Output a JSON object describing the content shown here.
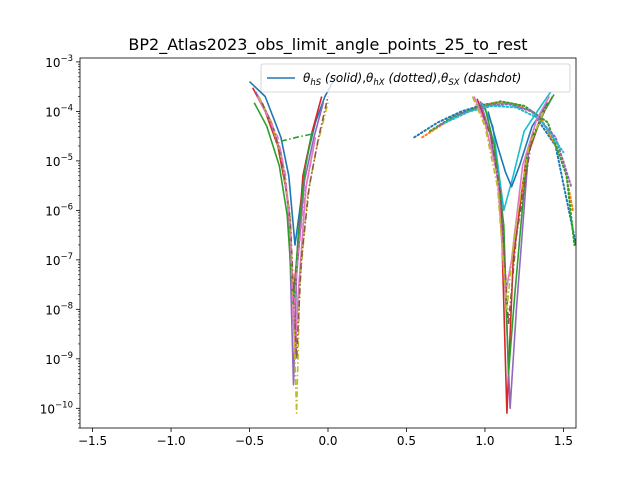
{
  "chart_data": {
    "type": "line",
    "title": "BP2_Atlas2023_obs_limit_angle_points_25_to_rest",
    "xlabel": "",
    "ylabel": "",
    "xlim": [
      -1.58,
      1.58
    ],
    "ylim": [
      4e-11,
      0.0012
    ],
    "yscale": "log",
    "grid": false,
    "x_ticks": [
      -1.5,
      -1.0,
      -0.5,
      0.0,
      0.5,
      1.0,
      1.5
    ],
    "x_tick_labels": [
      "−1.5",
      "−1.0",
      "−0.5",
      "0.0",
      "0.5",
      "1.0",
      "1.5"
    ],
    "y_ticks": [
      1e-10,
      1e-09,
      1e-08,
      1e-07,
      1e-06,
      1e-05,
      0.0001,
      0.001
    ],
    "y_tick_labels": [
      {
        "base": "10",
        "exp": "−10"
      },
      {
        "base": "10",
        "exp": "−9"
      },
      {
        "base": "10",
        "exp": "−8"
      },
      {
        "base": "10",
        "exp": "−7"
      },
      {
        "base": "10",
        "exp": "−6"
      },
      {
        "base": "10",
        "exp": "−5"
      },
      {
        "base": "10",
        "exp": "−4"
      },
      {
        "base": "10",
        "exp": "−3"
      }
    ],
    "legend": {
      "placement": "top-right",
      "entries": [
        {
          "text": "θhS (solid),θhX (dotted),θSX (dashdot)",
          "color": "#1f77b4"
        }
      ]
    },
    "palette": [
      "#1f77b4",
      "#ff7f0e",
      "#2ca02c",
      "#d62728",
      "#9467bd",
      "#8c564b",
      "#e377c2",
      "#7f7f7f",
      "#bcbd22",
      "#17becf"
    ],
    "series": [
      {
        "style": "solid",
        "color": "#1f77b4",
        "x": [
          -0.5,
          -0.4,
          -0.3,
          -0.25,
          -0.21,
          -0.18,
          -0.14,
          -0.08,
          -0.02,
          0.05
        ],
        "y": [
          0.0004,
          0.0002,
          3e-05,
          5e-06,
          2e-07,
          1e-06,
          1e-05,
          6e-05,
          0.0002,
          0.0005
        ]
      },
      {
        "style": "solid",
        "color": "#d62728",
        "x": [
          -0.48,
          -0.4,
          -0.32,
          -0.26,
          -0.22,
          -0.2,
          -0.16,
          -0.1,
          -0.04
        ],
        "y": [
          0.0003,
          0.0001,
          2e-05,
          2e-06,
          2e-08,
          1e-07,
          5e-06,
          4e-05,
          0.0002
        ]
      },
      {
        "style": "solid",
        "color": "#9467bd",
        "x": [
          -0.46,
          -0.38,
          -0.3,
          -0.25,
          -0.22,
          -0.2,
          -0.15,
          -0.09,
          -0.03
        ],
        "y": [
          0.00025,
          8e-05,
          1.5e-05,
          1e-06,
          3e-10,
          5e-08,
          4e-06,
          3e-05,
          0.00015
        ]
      },
      {
        "style": "solid",
        "color": "#e377c2",
        "x": [
          -0.45,
          -0.36,
          -0.29,
          -0.24,
          -0.21,
          -0.19,
          -0.14,
          -0.08
        ],
        "y": [
          0.0002,
          6e-05,
          1e-05,
          5e-07,
          1e-09,
          2e-08,
          3e-06,
          3e-05
        ]
      },
      {
        "style": "solid",
        "color": "#2ca02c",
        "x": [
          -0.47,
          -0.39,
          -0.31,
          -0.26,
          -0.22,
          -0.19,
          -0.15,
          -0.1
        ],
        "y": [
          0.00015,
          5e-05,
          8e-06,
          8e-07,
          1e-08,
          3e-07,
          6e-06,
          4e-05
        ]
      },
      {
        "style": "dashdot",
        "color": "#bcbd22",
        "x": [
          -0.44,
          -0.36,
          -0.29,
          -0.24,
          -0.2,
          -0.18,
          -0.13,
          -0.07,
          0.0
        ],
        "y": [
          0.0002,
          6e-05,
          9e-06,
          8e-07,
          8e-11,
          3e-08,
          2e-06,
          2e-05,
          0.00015
        ]
      },
      {
        "style": "dashdot",
        "color": "#8c564b",
        "x": [
          -0.42,
          -0.34,
          -0.28,
          -0.24,
          -0.2,
          -0.17,
          -0.12,
          -0.06,
          0.0
        ],
        "y": [
          0.00015,
          4e-05,
          6e-06,
          6e-07,
          1e-09,
          1e-07,
          3e-06,
          3e-05,
          0.0002
        ]
      },
      {
        "style": "dashdot",
        "color": "#2ca02c",
        "x": [
          -0.3,
          -0.2,
          -0.1
        ],
        "y": [
          2.5e-05,
          3e-05,
          3.5e-05
        ]
      },
      {
        "style": "dashdot",
        "color": "#e377c2",
        "x": [
          -0.4,
          -0.32,
          -0.27,
          -0.24,
          -0.22,
          -0.2,
          -0.15,
          -0.09
        ],
        "y": [
          0.0001,
          3e-05,
          5e-06,
          3e-07,
          5e-09,
          6e-08,
          2e-06,
          2e-05
        ]
      },
      {
        "style": "dotted",
        "color": "#1f77b4",
        "x": [
          0.55,
          0.7,
          0.85,
          1.0,
          1.15,
          1.3,
          1.45,
          1.58
        ],
        "y": [
          3e-05,
          6e-05,
          0.0001,
          0.00014,
          0.00015,
          0.0001,
          2e-05,
          2e-07
        ]
      },
      {
        "style": "dotted",
        "color": "#ff7f0e",
        "x": [
          0.6,
          0.75,
          0.9,
          1.05,
          1.2,
          1.35,
          1.5,
          1.56
        ],
        "y": [
          3e-05,
          6e-05,
          0.0001,
          0.00015,
          0.00014,
          8e-05,
          1e-05,
          1e-06
        ]
      },
      {
        "style": "dotted",
        "color": "#2ca02c",
        "x": [
          0.65,
          0.8,
          0.95,
          1.1,
          1.25,
          1.4,
          1.52,
          1.57
        ],
        "y": [
          4e-05,
          8e-05,
          0.00012,
          0.00016,
          0.00013,
          6e-05,
          5e-06,
          2e-07
        ]
      },
      {
        "style": "dotted",
        "color": "#9467bd",
        "x": [
          0.7,
          0.85,
          1.0,
          1.15,
          1.3,
          1.45,
          1.55
        ],
        "y": [
          5e-05,
          9e-05,
          0.00013,
          0.00014,
          0.0001,
          3e-05,
          3e-06
        ]
      },
      {
        "style": "dotted",
        "color": "#17becf",
        "x": [
          0.75,
          0.9,
          1.05,
          1.2,
          1.35,
          1.5
        ],
        "y": [
          6e-05,
          0.0001,
          0.00013,
          0.00012,
          7e-05,
          1.5e-05
        ]
      },
      {
        "style": "solid",
        "color": "#17becf",
        "x": [
          0.98,
          1.05,
          1.12,
          1.18,
          1.25,
          1.35,
          1.42
        ],
        "y": [
          0.00015,
          5e-05,
          1e-06,
          5e-06,
          4e-05,
          0.00012,
          0.00025
        ]
      },
      {
        "style": "solid",
        "color": "#d62728",
        "x": [
          0.95,
          1.03,
          1.1,
          1.14,
          1.18,
          1.26,
          1.36,
          1.43
        ],
        "y": [
          0.00018,
          4e-05,
          2e-06,
          8e-11,
          1e-07,
          1e-05,
          8e-05,
          0.0002
        ]
      },
      {
        "style": "solid",
        "color": "#9467bd",
        "x": [
          0.97,
          1.04,
          1.11,
          1.16,
          1.2,
          1.28,
          1.38
        ],
        "y": [
          0.00016,
          3e-05,
          1e-06,
          1e-10,
          1e-08,
          2e-05,
          0.0001
        ]
      },
      {
        "style": "solid",
        "color": "#2ca02c",
        "x": [
          1.0,
          1.06,
          1.12,
          1.15,
          1.19,
          1.27,
          1.37,
          1.44
        ],
        "y": [
          0.00012,
          2e-05,
          5e-07,
          5e-10,
          2e-08,
          1.5e-05,
          9e-05,
          0.00022
        ]
      },
      {
        "style": "solid",
        "color": "#1f77b4",
        "x": [
          1.02,
          1.08,
          1.13,
          1.17,
          1.22,
          1.3,
          1.4
        ],
        "y": [
          0.0001,
          2e-05,
          6e-06,
          3e-06,
          8e-06,
          5e-05,
          0.00015
        ]
      },
      {
        "style": "solid",
        "color": "#e377c2",
        "x": [
          0.93,
          1.0,
          1.08,
          1.13,
          1.17,
          1.24,
          1.33,
          1.41
        ],
        "y": [
          0.0002,
          6e-05,
          5e-06,
          2e-08,
          1e-07,
          8e-06,
          7e-05,
          0.0002
        ]
      },
      {
        "style": "dashdot",
        "color": "#8c564b",
        "x": [
          0.96,
          1.04,
          1.1,
          1.15,
          1.2,
          1.3,
          1.4
        ],
        "y": [
          0.00015,
          3e-05,
          2e-06,
          5e-09,
          3e-07,
          3e-05,
          0.00015
        ]
      },
      {
        "style": "dashdot",
        "color": "#bcbd22",
        "x": [
          0.92,
          1.0,
          1.08,
          1.14,
          1.19,
          1.28,
          1.39
        ],
        "y": [
          0.0002,
          5e-05,
          3e-06,
          1e-08,
          4e-07,
          2e-05,
          0.00013
        ]
      }
    ]
  }
}
